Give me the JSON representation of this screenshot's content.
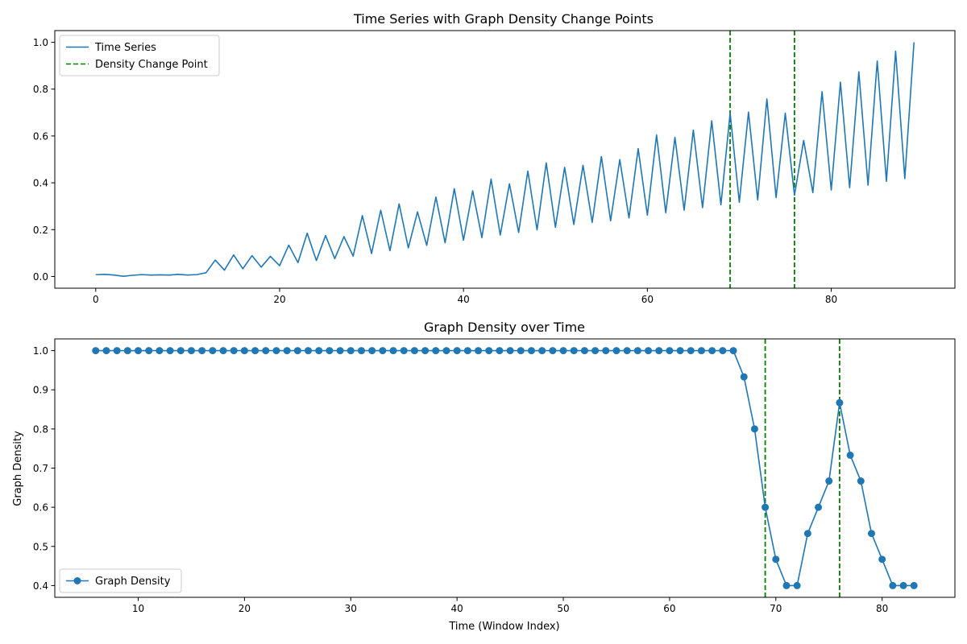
{
  "chart_data": [
    {
      "type": "line",
      "title": "Time Series with Graph Density Change Points",
      "xlabel": "",
      "ylabel": "",
      "xlim": [
        -4.45,
        93.45
      ],
      "ylim": [
        -0.05,
        1.05
      ],
      "xticks": [
        0,
        20,
        40,
        60,
        80
      ],
      "yticks": [
        0.0,
        0.2,
        0.4,
        0.6,
        0.8,
        1.0
      ],
      "xtick_labels": [
        "0",
        "20",
        "40",
        "60",
        "80"
      ],
      "ytick_labels": [
        "0.0",
        "0.2",
        "0.4",
        "0.6",
        "0.8",
        "1.0"
      ],
      "grid": false,
      "legend": {
        "placement": "upper-left",
        "entries": [
          {
            "label": "Time Series",
            "color": "#1f77b4",
            "style": "solid"
          },
          {
            "label": "Density Change Point",
            "color": "#008000",
            "style": "dashed"
          }
        ]
      },
      "series": [
        {
          "name": "Time Series",
          "color": "#1f77b4",
          "x": [
            0,
            1,
            2,
            3,
            4,
            5,
            6,
            7,
            8,
            9,
            10,
            11,
            12,
            13,
            14,
            15,
            16,
            17,
            18,
            19,
            20,
            21,
            22,
            23,
            24,
            25,
            26,
            27,
            28,
            29,
            30,
            31,
            32,
            33,
            34,
            35,
            36,
            37,
            38,
            39,
            40,
            41,
            42,
            43,
            44,
            45,
            46,
            47,
            48,
            49,
            50,
            51,
            52,
            53,
            54,
            55,
            56,
            57,
            58,
            59,
            60,
            61,
            62,
            63,
            64,
            65,
            66,
            67,
            68,
            69,
            70,
            71,
            72,
            73,
            74,
            75,
            76,
            77,
            78,
            79,
            80,
            81,
            82,
            83,
            84,
            85,
            86,
            87,
            88,
            89
          ],
          "values": [
            0.008,
            0.009,
            0.006,
            0.001,
            0.005,
            0.008,
            0.006,
            0.007,
            0.006,
            0.009,
            0.006,
            0.008,
            0.016,
            0.07,
            0.027,
            0.092,
            0.033,
            0.089,
            0.04,
            0.086,
            0.046,
            0.134,
            0.059,
            0.185,
            0.068,
            0.175,
            0.076,
            0.17,
            0.087,
            0.26,
            0.098,
            0.283,
            0.11,
            0.31,
            0.122,
            0.276,
            0.133,
            0.339,
            0.144,
            0.375,
            0.155,
            0.366,
            0.166,
            0.416,
            0.177,
            0.396,
            0.188,
            0.45,
            0.199,
            0.485,
            0.21,
            0.466,
            0.222,
            0.475,
            0.231,
            0.512,
            0.238,
            0.499,
            0.25,
            0.546,
            0.262,
            0.604,
            0.272,
            0.594,
            0.283,
            0.625,
            0.294,
            0.665,
            0.306,
            0.697,
            0.317,
            0.702,
            0.327,
            0.758,
            0.337,
            0.697,
            0.347,
            0.581,
            0.358,
            0.789,
            0.369,
            0.83,
            0.379,
            0.874,
            0.39,
            0.92,
            0.406,
            0.962,
            0.418,
            1.0
          ]
        }
      ],
      "vlines": [
        {
          "x": 69,
          "color": "#008000",
          "style": "dashed"
        },
        {
          "x": 76,
          "color": "#008000",
          "style": "dashed"
        }
      ]
    },
    {
      "type": "line",
      "title": "Graph Density over Time",
      "xlabel": "Time (Window Index)",
      "ylabel": "Graph Density",
      "xlim": [
        2.15,
        86.85
      ],
      "ylim": [
        0.37,
        1.03
      ],
      "xticks": [
        10,
        20,
        30,
        40,
        50,
        60,
        70,
        80
      ],
      "yticks": [
        0.4,
        0.5,
        0.6,
        0.7,
        0.8,
        0.9,
        1.0
      ],
      "xtick_labels": [
        "10",
        "20",
        "30",
        "40",
        "50",
        "60",
        "70",
        "80"
      ],
      "ytick_labels": [
        "0.4",
        "0.5",
        "0.6",
        "0.7",
        "0.8",
        "0.9",
        "1.0"
      ],
      "grid": false,
      "legend": {
        "placement": "lower-left",
        "entries": [
          {
            "label": "Graph Density",
            "color": "#1f77b4",
            "style": "solid-marker"
          }
        ]
      },
      "series": [
        {
          "name": "Graph Density",
          "color": "#1f77b4",
          "marker": "circle",
          "x": [
            6,
            7,
            8,
            9,
            10,
            11,
            12,
            13,
            14,
            15,
            16,
            17,
            18,
            19,
            20,
            21,
            22,
            23,
            24,
            25,
            26,
            27,
            28,
            29,
            30,
            31,
            32,
            33,
            34,
            35,
            36,
            37,
            38,
            39,
            40,
            41,
            42,
            43,
            44,
            45,
            46,
            47,
            48,
            49,
            50,
            51,
            52,
            53,
            54,
            55,
            56,
            57,
            58,
            59,
            60,
            61,
            62,
            63,
            64,
            65,
            66,
            67,
            68,
            69,
            70,
            71,
            72,
            73,
            74,
            75,
            76,
            77,
            78,
            79,
            80,
            81,
            82,
            83
          ],
          "values": [
            1.0,
            1.0,
            1.0,
            1.0,
            1.0,
            1.0,
            1.0,
            1.0,
            1.0,
            1.0,
            1.0,
            1.0,
            1.0,
            1.0,
            1.0,
            1.0,
            1.0,
            1.0,
            1.0,
            1.0,
            1.0,
            1.0,
            1.0,
            1.0,
            1.0,
            1.0,
            1.0,
            1.0,
            1.0,
            1.0,
            1.0,
            1.0,
            1.0,
            1.0,
            1.0,
            1.0,
            1.0,
            1.0,
            1.0,
            1.0,
            1.0,
            1.0,
            1.0,
            1.0,
            1.0,
            1.0,
            1.0,
            1.0,
            1.0,
            1.0,
            1.0,
            1.0,
            1.0,
            1.0,
            1.0,
            1.0,
            1.0,
            1.0,
            1.0,
            1.0,
            1.0,
            0.933,
            0.8,
            0.6,
            0.467,
            0.4,
            0.4,
            0.533,
            0.6,
            0.667,
            0.867,
            0.733,
            0.667,
            0.533,
            0.467,
            0.4,
            0.4,
            0.4
          ]
        }
      ],
      "vlines": [
        {
          "x": 69,
          "color": "#008000",
          "style": "dashed"
        },
        {
          "x": 76,
          "color": "#008000",
          "style": "dashed"
        }
      ]
    }
  ]
}
